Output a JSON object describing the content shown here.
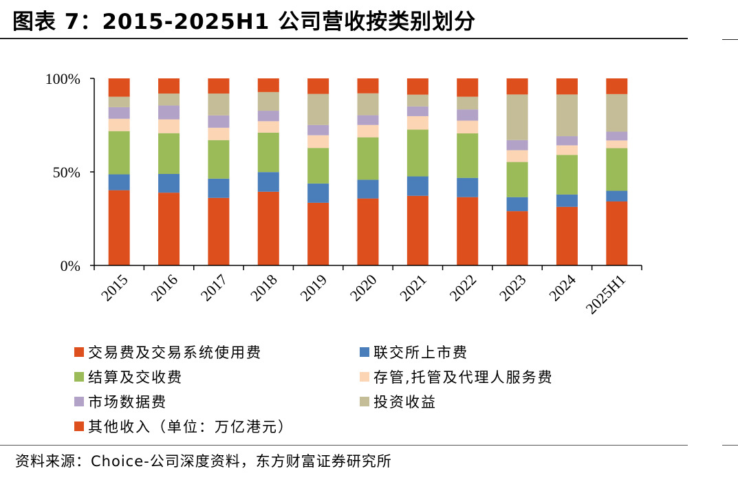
{
  "title": "图表 7：2015-2025H1 公司营收按类别划分",
  "source": "资料来源：Choice-公司深度资料，东方财富证券研究所",
  "chart_data": {
    "type": "bar",
    "stacked": true,
    "categories": [
      "2015",
      "2016",
      "2017",
      "2018",
      "2019",
      "2020",
      "2021",
      "2022",
      "2023",
      "2024",
      "2025H1"
    ],
    "yticks": [
      "0%",
      "50%",
      "100%"
    ],
    "ylim": [
      0,
      100
    ],
    "legend_position": "bottom",
    "series": [
      {
        "name": "交易费及交易系统使用费",
        "color": "#DE4F1E",
        "values": [
          40.2,
          38.9,
          36.1,
          39.4,
          33.5,
          35.8,
          37.2,
          36.5,
          29.0,
          31.3,
          34.2
        ]
      },
      {
        "name": "联交所上市费",
        "color": "#4A7EBB",
        "values": [
          8.5,
          10.0,
          10.3,
          10.5,
          10.3,
          10.0,
          10.4,
          10.3,
          7.5,
          6.6,
          5.7
        ]
      },
      {
        "name": "结算及交收费",
        "color": "#9BBB59",
        "values": [
          23.1,
          21.8,
          20.6,
          21.1,
          19.0,
          22.7,
          25.0,
          23.8,
          18.8,
          21.2,
          22.8
        ]
      },
      {
        "name": "存管,托管及代理人服务费",
        "color": "#FCD5B5",
        "values": [
          6.6,
          7.4,
          6.6,
          6.1,
          6.8,
          6.6,
          7.2,
          6.8,
          6.3,
          5.1,
          4.1
        ]
      },
      {
        "name": "市场数据费",
        "color": "#B3A2C7",
        "values": [
          6.2,
          7.4,
          6.6,
          5.6,
          5.5,
          5.2,
          5.2,
          6.0,
          5.4,
          4.9,
          4.7
        ]
      },
      {
        "name": "投资收益",
        "color": "#C4BD97",
        "values": [
          5.6,
          6.4,
          11.7,
          10.0,
          16.6,
          11.7,
          6.3,
          6.8,
          24.4,
          22.3,
          20.1
        ]
      },
      {
        "name": "其他收入（单位：万亿港元）",
        "color": "#DE4F1E",
        "values": [
          9.8,
          8.1,
          8.1,
          7.3,
          8.3,
          8.0,
          8.7,
          9.8,
          8.6,
          8.6,
          8.4
        ]
      }
    ]
  }
}
